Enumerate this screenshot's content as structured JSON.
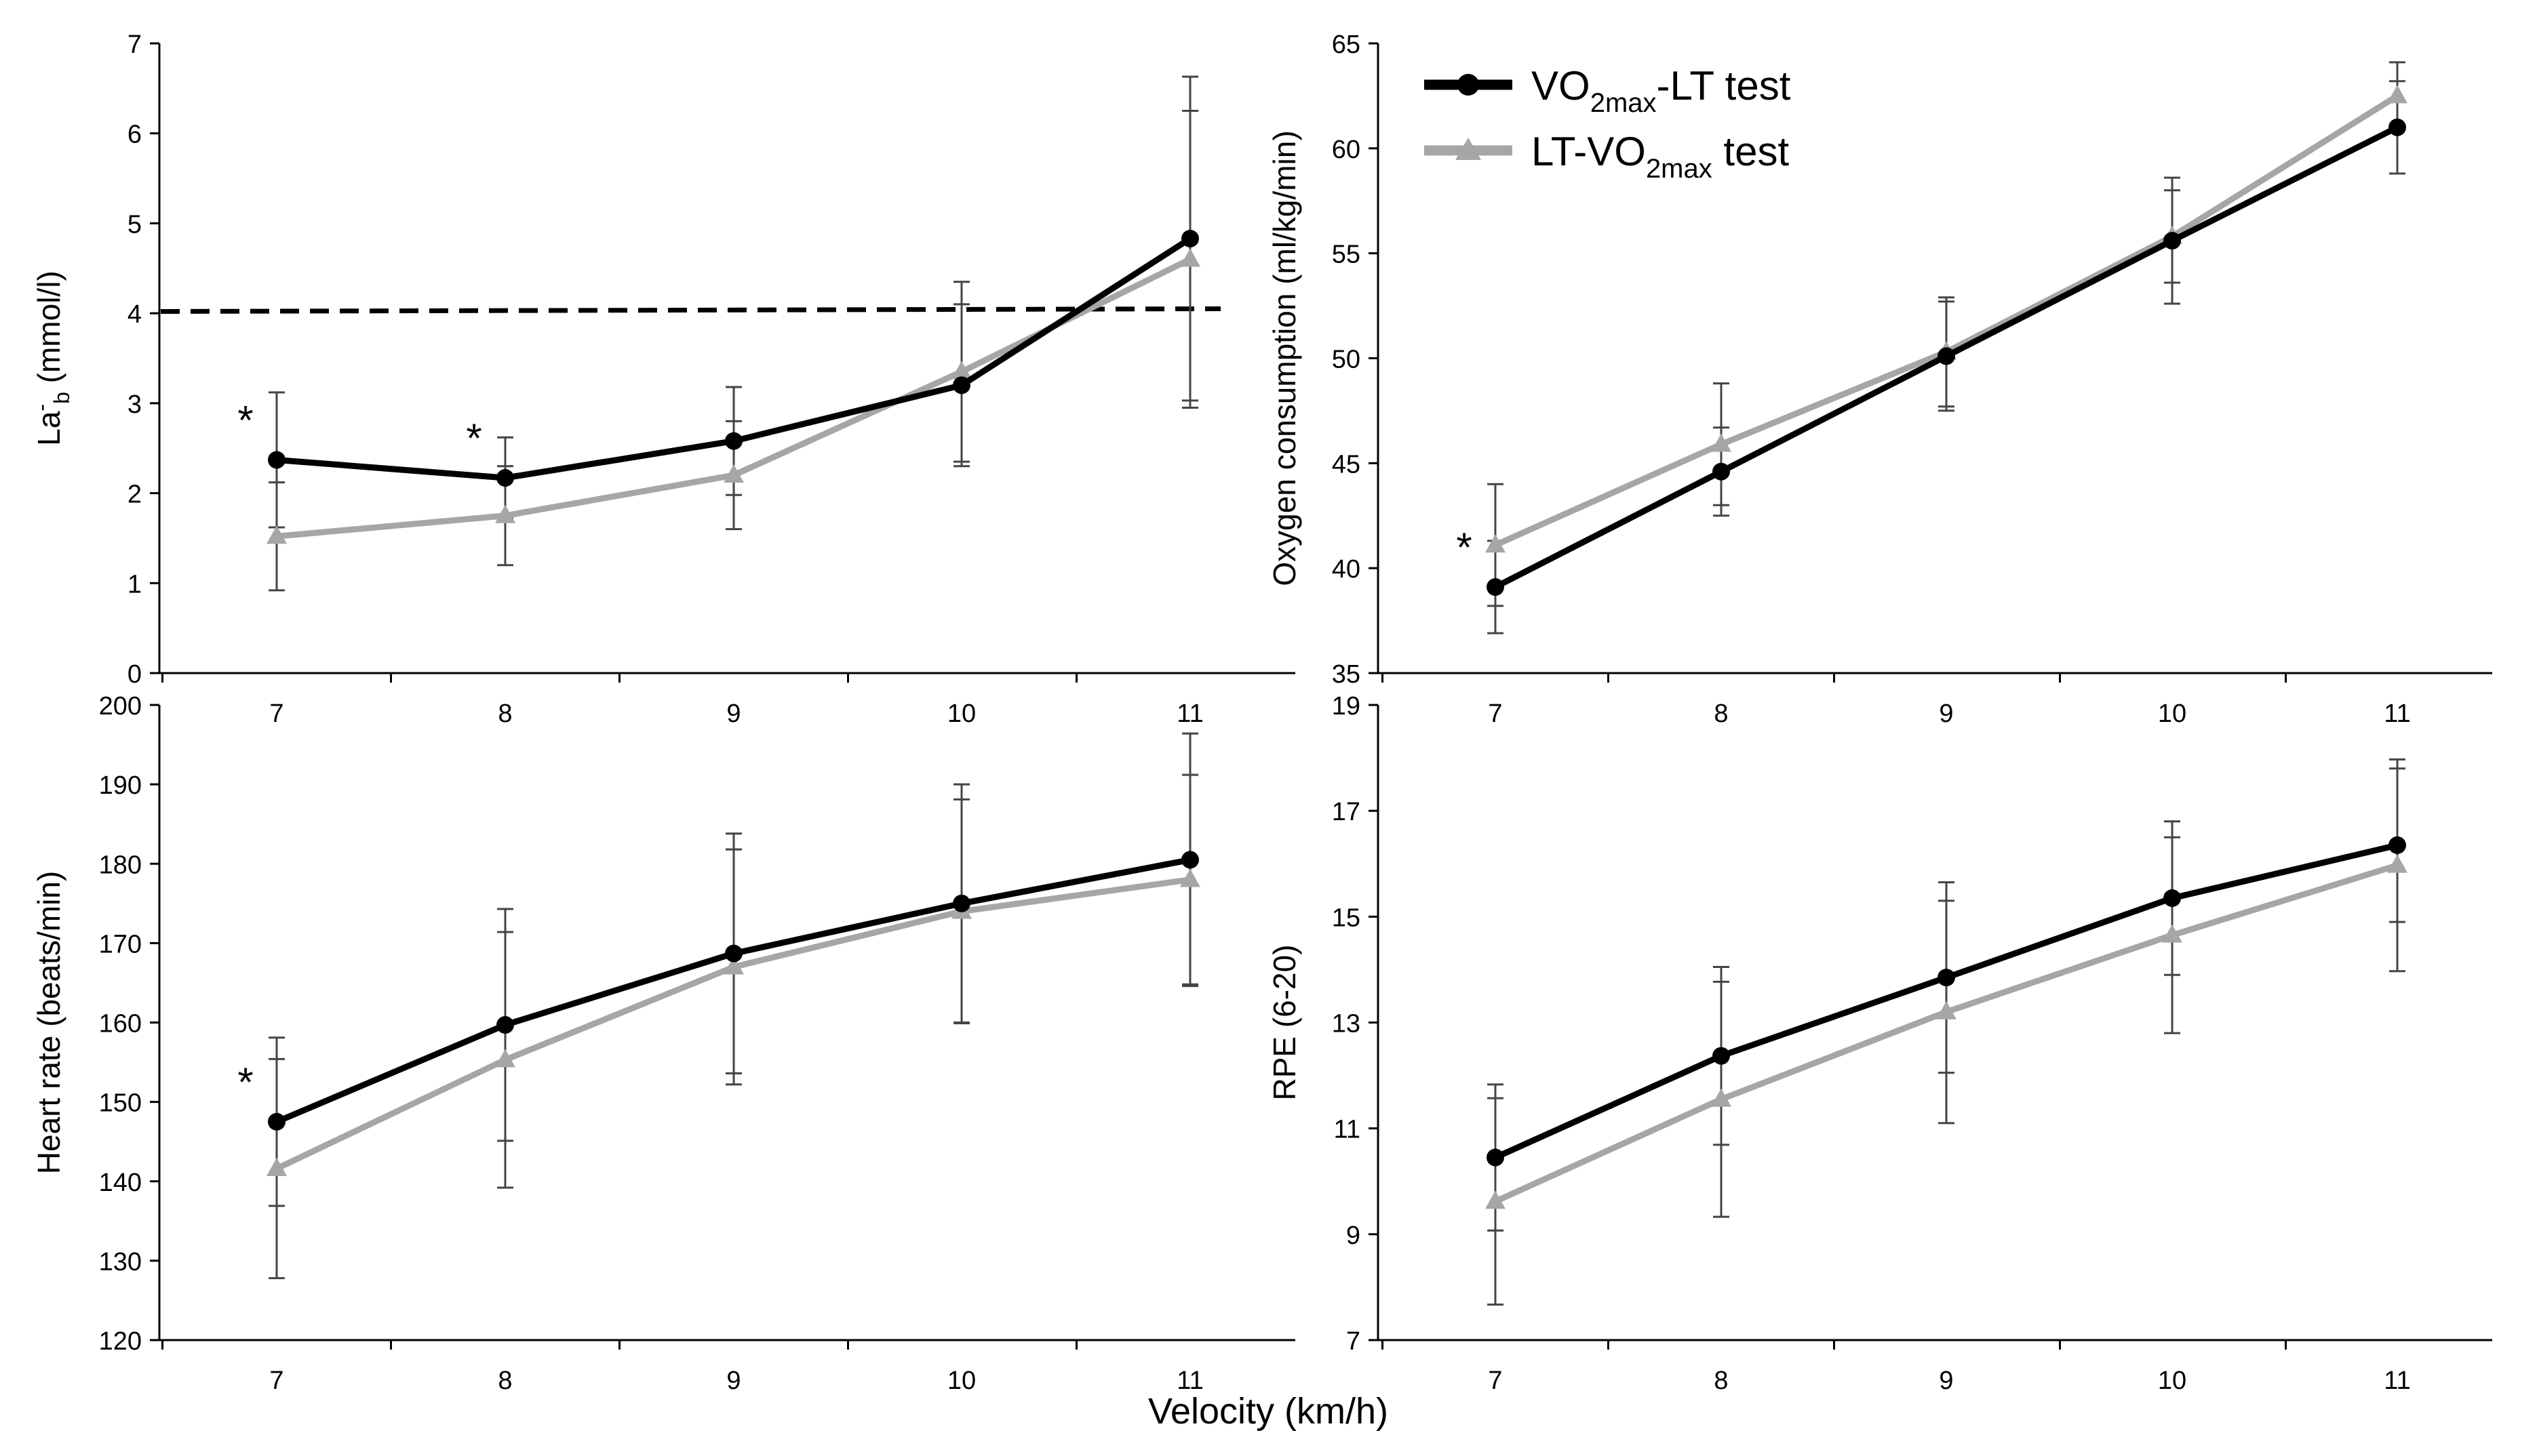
{
  "chart_data": [
    {
      "type": "line",
      "panel": "top-left",
      "ylabel_main": "La",
      "ylabel_sup": "-",
      "ylabel_sub": "b",
      "ylabel_rest": " (mmol/l)",
      "ylim": [
        0,
        7
      ],
      "yticks": [
        "0",
        "1",
        "2",
        "3",
        "4",
        "5",
        "6",
        "7"
      ],
      "categories": [
        "7",
        "8",
        "9",
        "10",
        "11"
      ],
      "reference_line": [
        4.02,
        4.05
      ],
      "series": [
        {
          "name": "VO2max-LT test",
          "color": "#000000",
          "marker": "circle",
          "values": [
            2.37,
            2.17,
            2.58,
            3.2,
            4.83
          ],
          "errors": [
            0.75,
            0.45,
            0.6,
            0.9,
            1.8
          ],
          "asterisks": [
            "*",
            "*",
            "",
            "",
            ""
          ]
        },
        {
          "name": "LT-VO2max test",
          "color": "#a6a6a6",
          "marker": "triangle",
          "values": [
            1.52,
            1.75,
            2.2,
            3.35,
            4.6
          ],
          "errors": [
            0.6,
            0.55,
            0.6,
            1.0,
            1.65
          ],
          "asterisks": [
            "",
            "",
            "",
            "",
            ""
          ]
        }
      ]
    },
    {
      "type": "line",
      "panel": "top-right",
      "ylabel": "Oxygen consumption (ml/kg/min)",
      "ylim": [
        35,
        65
      ],
      "yticks": [
        "35",
        "40",
        "45",
        "50",
        "55",
        "60",
        "65"
      ],
      "categories": [
        "7",
        "8",
        "9",
        "10",
        "11"
      ],
      "series": [
        {
          "name": "VO2max-LT test",
          "color": "#000000",
          "marker": "circle",
          "values": [
            39.1,
            44.6,
            50.1,
            55.6,
            61.0
          ],
          "errors": [
            2.2,
            2.1,
            2.6,
            3.0,
            2.2
          ],
          "asterisks": [
            "*",
            "",
            "",
            "",
            ""
          ]
        },
        {
          "name": "LT-VO2max test",
          "color": "#a6a6a6",
          "marker": "triangle",
          "values": [
            41.1,
            45.9,
            50.3,
            55.8,
            62.5
          ],
          "errors": [
            2.9,
            2.9,
            2.6,
            2.2,
            1.6
          ],
          "asterisks": [
            "",
            "",
            "",
            "",
            ""
          ]
        }
      ]
    },
    {
      "type": "line",
      "panel": "bottom-left",
      "ylabel": "Heart rate (beats/min)",
      "ylim": [
        120,
        200
      ],
      "yticks": [
        "120",
        "130",
        "140",
        "150",
        "160",
        "170",
        "180",
        "190",
        "200"
      ],
      "categories": [
        "7",
        "8",
        "9",
        "10",
        "11"
      ],
      "series": [
        {
          "name": "VO2max-LT test",
          "color": "#000000",
          "marker": "circle",
          "values": [
            147.5,
            159.7,
            168.7,
            175.0,
            180.5
          ],
          "errors": [
            10.6,
            14.6,
            15.1,
            15.0,
            15.9
          ],
          "asterisks": [
            "*",
            "",
            "",
            "",
            ""
          ]
        },
        {
          "name": "LT-VO2max test",
          "color": "#a6a6a6",
          "marker": "triangle",
          "values": [
            141.6,
            155.3,
            167.0,
            174.0,
            178.0
          ],
          "errors": [
            13.8,
            16.1,
            14.8,
            14.1,
            13.2
          ],
          "asterisks": [
            "",
            "",
            "",
            "",
            ""
          ]
        }
      ]
    },
    {
      "type": "line",
      "panel": "bottom-right",
      "ylabel": "RPE (6-20)",
      "ylim": [
        7,
        19
      ],
      "yticks": [
        "7",
        "9",
        "11",
        "13",
        "15",
        "17",
        "19"
      ],
      "categories": [
        "7",
        "8",
        "9",
        "10",
        "11"
      ],
      "series": [
        {
          "name": "VO2max-LT test",
          "color": "#000000",
          "marker": "circle",
          "values": [
            10.45,
            12.37,
            13.85,
            15.35,
            16.35
          ],
          "errors": [
            1.38,
            1.68,
            1.8,
            1.45,
            1.45
          ],
          "asterisks": [
            "",
            "",
            "",
            "",
            ""
          ]
        },
        {
          "name": "LT-VO2max test",
          "color": "#a6a6a6",
          "marker": "triangle",
          "values": [
            9.62,
            11.55,
            13.2,
            14.65,
            15.97
          ],
          "errors": [
            1.95,
            2.22,
            2.1,
            1.85,
            2.0
          ],
          "asterisks": [
            "",
            "",
            "",
            "",
            ""
          ]
        }
      ]
    }
  ],
  "xlabel": "Velocity  (km/h)",
  "legend": {
    "position": "top-right-panel top-left",
    "items": [
      {
        "marker": "circle",
        "color": "#000000",
        "prefix": "VO",
        "sub": "2max",
        "suffix": "-LT test"
      },
      {
        "marker": "triangle",
        "color": "#a6a6a6",
        "prefix": "LT-VO",
        "sub": "2max",
        "suffix": " test"
      }
    ]
  }
}
